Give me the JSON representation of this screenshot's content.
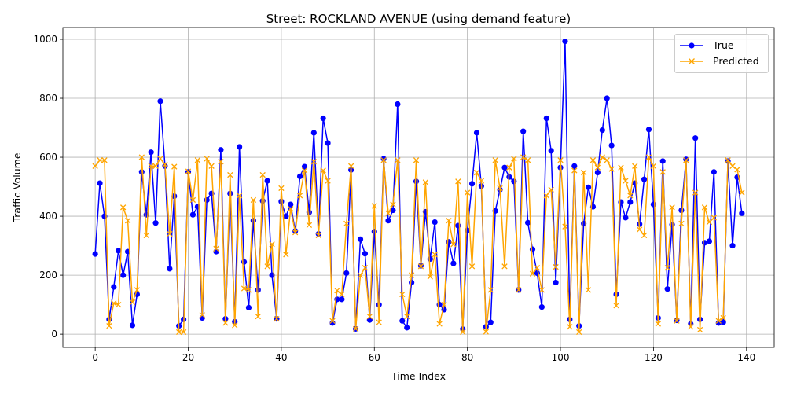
{
  "chart_data": {
    "type": "line",
    "title": "Street: ROCKLAND AVENUE (using demand feature)",
    "xlabel": "Time Index",
    "ylabel": "Traffic Volume",
    "xlim": [
      -6.95,
      145.95
    ],
    "ylim": [
      -45,
      1040
    ],
    "xticks": [
      0,
      20,
      40,
      60,
      80,
      100,
      120,
      140
    ],
    "yticks": [
      0,
      200,
      400,
      600,
      800,
      1000
    ],
    "grid": true,
    "legend_position": "top-right",
    "x": [
      0,
      1,
      2,
      3,
      4,
      5,
      6,
      7,
      8,
      9,
      10,
      11,
      12,
      13,
      14,
      15,
      16,
      17,
      18,
      19,
      20,
      21,
      22,
      23,
      24,
      25,
      26,
      27,
      28,
      29,
      30,
      31,
      32,
      33,
      34,
      35,
      36,
      37,
      38,
      39,
      40,
      41,
      42,
      43,
      44,
      45,
      46,
      47,
      48,
      49,
      50,
      51,
      52,
      53,
      54,
      55,
      56,
      57,
      58,
      59,
      60,
      61,
      62,
      63,
      64,
      65,
      66,
      67,
      68,
      69,
      70,
      71,
      72,
      73,
      74,
      75,
      76,
      77,
      78,
      79,
      80,
      81,
      82,
      83,
      84,
      85,
      86,
      87,
      88,
      89,
      90,
      91,
      92,
      93,
      94,
      95,
      96,
      97,
      98,
      99,
      100,
      101,
      102,
      103,
      104,
      105,
      106,
      107,
      108,
      109,
      110,
      111,
      112,
      113,
      114,
      115,
      116,
      117,
      118,
      119,
      120,
      121,
      122,
      123,
      124,
      125,
      126,
      127,
      128,
      129,
      130,
      131,
      132,
      133,
      134,
      135,
      136,
      137,
      138,
      139
    ],
    "series": [
      {
        "name": "True",
        "color": "#0000ff",
        "marker": "circle",
        "values": [
          272,
          512,
          400,
          50,
          160,
          283,
          200,
          280,
          30,
          135,
          550,
          405,
          617,
          377,
          790,
          570,
          222,
          468,
          28,
          50,
          550,
          405,
          432,
          55,
          455,
          477,
          280,
          625,
          52,
          477,
          42,
          635,
          245,
          90,
          385,
          150,
          452,
          520,
          200,
          52,
          450,
          400,
          440,
          350,
          535,
          568,
          413,
          683,
          340,
          732,
          648,
          38,
          118,
          118,
          207,
          557,
          18,
          322,
          273,
          48,
          348,
          100,
          595,
          385,
          420,
          780,
          45,
          22,
          175,
          518,
          232,
          415,
          255,
          380,
          100,
          83,
          313,
          240,
          368,
          17,
          352,
          510,
          683,
          502,
          25,
          40,
          418,
          490,
          565,
          533,
          518,
          150,
          688,
          378,
          288,
          207,
          92,
          732,
          622,
          175,
          565,
          993,
          50,
          570,
          28,
          375,
          498,
          432,
          548,
          692,
          800,
          640,
          135,
          448,
          395,
          448,
          512,
          373,
          525,
          694,
          440,
          55,
          587,
          153,
          372,
          47,
          420,
          593,
          35,
          665,
          50,
          310,
          315,
          550,
          38,
          40,
          587,
          300,
          532,
          410
        ]
      },
      {
        "name": "Predicted",
        "color": "#ffa500",
        "marker": "x",
        "values": [
          570,
          590,
          590,
          28,
          105,
          100,
          430,
          385,
          108,
          150,
          600,
          335,
          570,
          570,
          595,
          575,
          340,
          568,
          7,
          7,
          552,
          455,
          590,
          65,
          595,
          570,
          290,
          585,
          38,
          540,
          30,
          470,
          155,
          150,
          455,
          60,
          540,
          230,
          305,
          52,
          495,
          270,
          425,
          345,
          470,
          555,
          370,
          585,
          335,
          555,
          520,
          45,
          148,
          135,
          375,
          570,
          18,
          200,
          225,
          60,
          435,
          40,
          590,
          410,
          440,
          590,
          135,
          60,
          200,
          590,
          230,
          515,
          195,
          270,
          35,
          100,
          385,
          305,
          518,
          7,
          480,
          230,
          548,
          520,
          8,
          150,
          590,
          495,
          230,
          565,
          595,
          150,
          600,
          590,
          205,
          225,
          150,
          470,
          490,
          228,
          590,
          365,
          25,
          555,
          7,
          548,
          150,
          590,
          565,
          600,
          590,
          560,
          97,
          565,
          520,
          470,
          570,
          355,
          335,
          600,
          570,
          35,
          550,
          225,
          430,
          45,
          375,
          590,
          25,
          480,
          15,
          430,
          380,
          395,
          45,
          55,
          590,
          570,
          558,
          480
        ]
      }
    ]
  }
}
